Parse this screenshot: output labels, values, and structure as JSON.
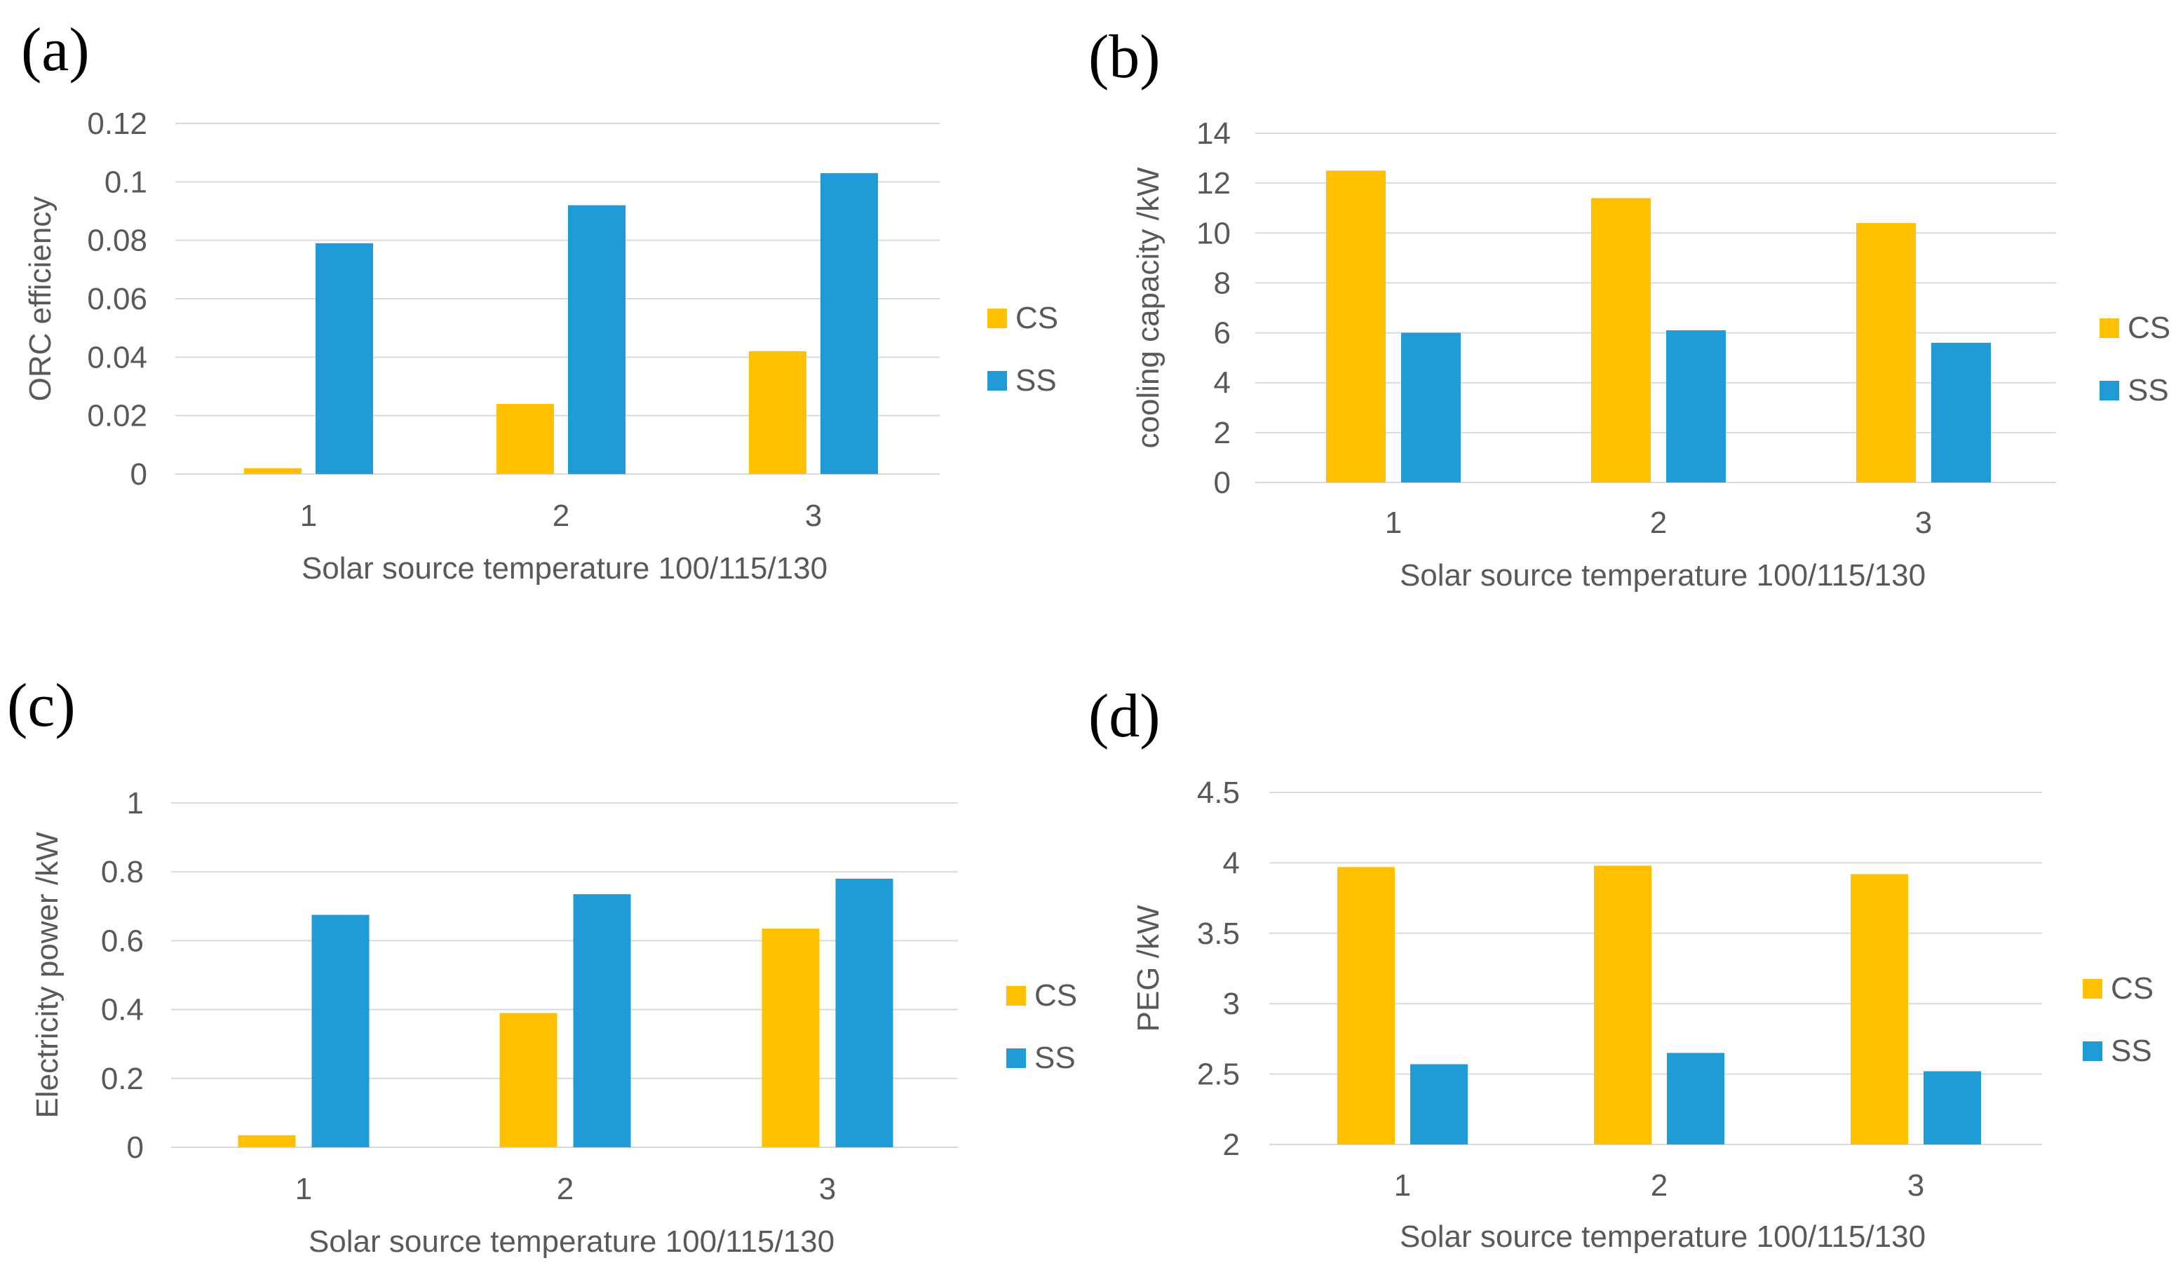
{
  "colors": {
    "CS": "#FFC000",
    "SS": "#1F9BD7",
    "grid": "#D9D9D9",
    "text": "#595959"
  },
  "chart_data": [
    {
      "panel": "(a)",
      "type": "bar",
      "categories": [
        "1",
        "2",
        "3"
      ],
      "series": [
        {
          "name": "CS",
          "values": [
            0.002,
            0.024,
            0.042
          ]
        },
        {
          "name": "SS",
          "values": [
            0.079,
            0.092,
            0.103
          ]
        }
      ],
      "ylabel": "ORC efficiency",
      "xlabel": "Solar source temperature 100/115/130",
      "yticks": [
        "0",
        "0.02",
        "0.04",
        "0.06",
        "0.08",
        "0.1",
        "0.12"
      ],
      "ylim": [
        0,
        0.12
      ],
      "grid": true,
      "legend": "right"
    },
    {
      "panel": "(b)",
      "type": "bar",
      "categories": [
        "1",
        "2",
        "3"
      ],
      "series": [
        {
          "name": "CS",
          "values": [
            12.5,
            11.4,
            10.4
          ]
        },
        {
          "name": "SS",
          "values": [
            6.0,
            6.1,
            5.6
          ]
        }
      ],
      "ylabel": "cooling capacity /kW",
      "xlabel": "Solar source temperature 100/115/130",
      "yticks": [
        "0",
        "2",
        "4",
        "6",
        "8",
        "10",
        "12",
        "14"
      ],
      "ylim": [
        0,
        14
      ],
      "grid": true,
      "legend": "right"
    },
    {
      "panel": "(c)",
      "type": "bar",
      "categories": [
        "1",
        "2",
        "3"
      ],
      "series": [
        {
          "name": "CS",
          "values": [
            0.035,
            0.39,
            0.635
          ]
        },
        {
          "name": "SS",
          "values": [
            0.675,
            0.735,
            0.78
          ]
        }
      ],
      "ylabel": "Electricity power /kW",
      "xlabel": "Solar source temperature 100/115/130",
      "yticks": [
        "0",
        "0.2",
        "0.4",
        "0.6",
        "0.8",
        "1"
      ],
      "ylim": [
        0,
        1
      ],
      "grid": true,
      "legend": "right"
    },
    {
      "panel": "(d)",
      "type": "bar",
      "categories": [
        "1",
        "2",
        "3"
      ],
      "series": [
        {
          "name": "CS",
          "values": [
            3.97,
            3.98,
            3.92
          ]
        },
        {
          "name": "SS",
          "values": [
            2.57,
            2.65,
            2.52
          ]
        }
      ],
      "ylabel": "PEG /kW",
      "xlabel": "Solar source temperature 100/115/130",
      "yticks": [
        "2",
        "2.5",
        "3",
        "3.5",
        "4",
        "4.5"
      ],
      "ylim": [
        2,
        4.5
      ],
      "grid": true,
      "legend": "right"
    }
  ]
}
